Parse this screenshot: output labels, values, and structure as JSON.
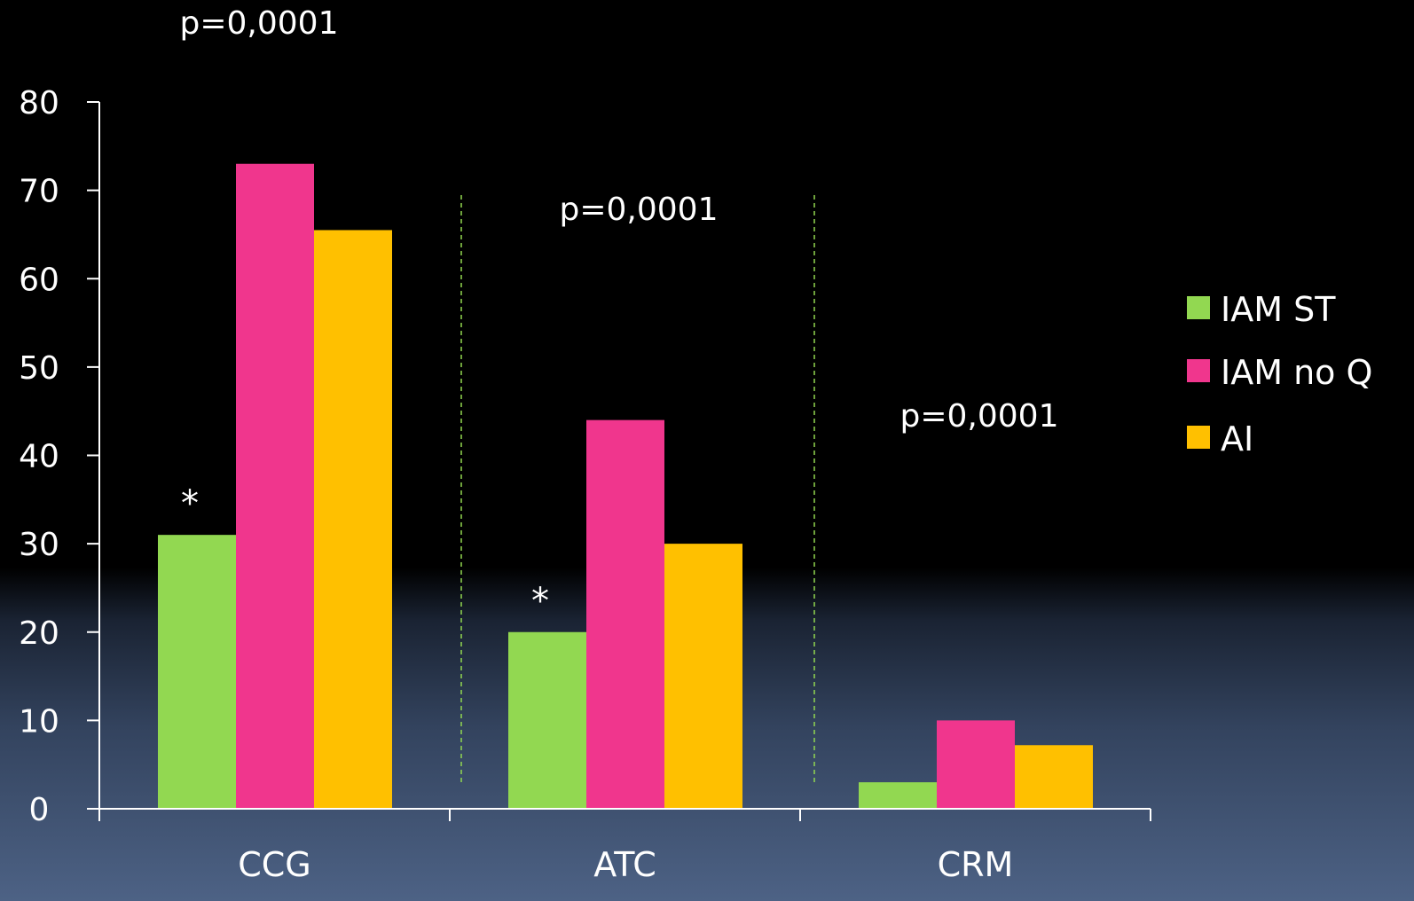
{
  "chart_data": {
    "type": "bar",
    "categories": [
      "CCG",
      "ATC",
      "CRM"
    ],
    "series": [
      {
        "name": "IAM ST",
        "values": [
          31,
          20,
          3
        ]
      },
      {
        "name": "IAM no Q",
        "values": [
          73,
          44,
          10
        ]
      },
      {
        "name": "AI",
        "values": [
          65.5,
          30,
          7.2
        ]
      }
    ],
    "ylim": [
      0,
      80
    ],
    "yticks": [
      "0",
      "10",
      "20",
      "30",
      "40",
      "50",
      "60",
      "70",
      "80"
    ],
    "xlabel": "",
    "ylabel": "",
    "grid": false,
    "legend_position": "right",
    "annotations": {
      "p_values": [
        "p=0,0001",
        "p=0,0001",
        "p=0,0001"
      ],
      "significance_marks": [
        {
          "category": "CCG",
          "series": "IAM ST",
          "mark": "*"
        },
        {
          "category": "ATC",
          "series": "IAM ST",
          "mark": "*"
        }
      ]
    }
  },
  "colors": {
    "IAM ST": "#92d851",
    "IAM no Q": "#f0368d",
    "AI": "#ffc000",
    "separator": "#92d851",
    "axis": "#ffffff",
    "text": "#ffffff"
  }
}
